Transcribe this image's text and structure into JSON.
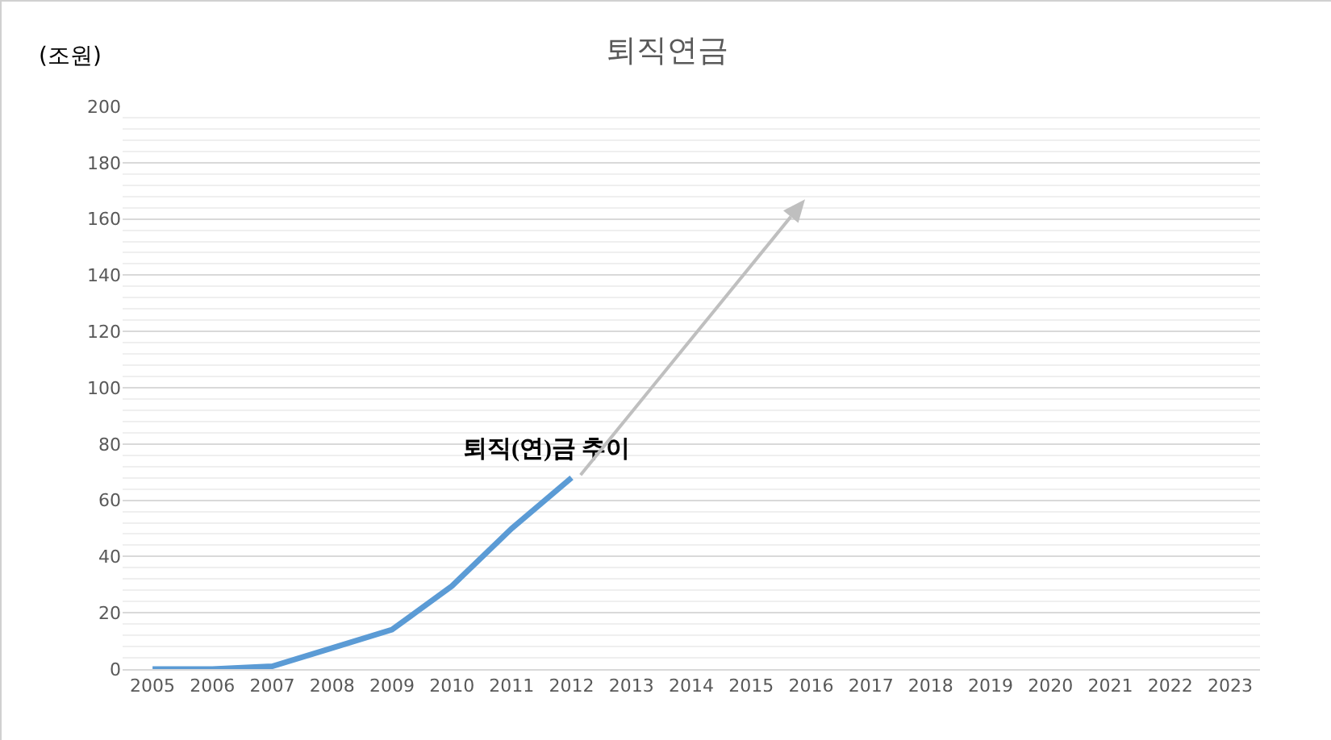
{
  "chart_data": {
    "type": "line",
    "title": "퇴직연금",
    "ylabel": "(조원)",
    "categories": [
      "2005",
      "2006",
      "2007",
      "2008",
      "2009",
      "2010",
      "2011",
      "2012",
      "2013",
      "2014",
      "2015",
      "2016",
      "2017",
      "2018",
      "2019",
      "2020",
      "2021",
      "2022",
      "2023"
    ],
    "series": [
      {
        "color": "#5b9bd5",
        "values": [
          0,
          0,
          1,
          7.5,
          14,
          29.5,
          50,
          68,
          null,
          null,
          null,
          null,
          null,
          null,
          null,
          null,
          null,
          null,
          null
        ]
      }
    ],
    "ylim": [
      0,
      200
    ],
    "yticks": [
      0,
      20,
      40,
      60,
      80,
      100,
      120,
      140,
      160,
      180,
      200
    ],
    "grid": "y",
    "marker": "none",
    "line_style": "solid",
    "annotations": [
      "퇴직(연)금 추이"
    ]
  }
}
